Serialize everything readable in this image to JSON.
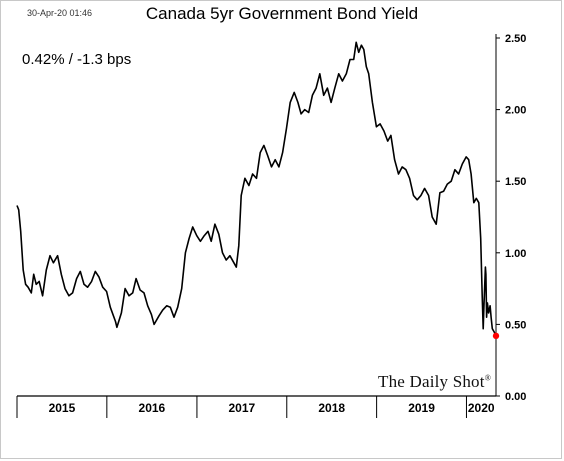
{
  "header": {
    "timestamp": "30-Apr-20 01:46",
    "title": "Canada 5yr Government Bond Yield",
    "readout": "0.42%  /  -1.3 bps"
  },
  "brand": {
    "name": "The Daily Shot",
    "mark": "®"
  },
  "colors": {
    "line": "#000000",
    "last_point": "#ff0000",
    "axis": "#000000"
  },
  "chart_data": {
    "type": "line",
    "title": "Canada 5yr Government Bond Yield",
    "xlabel": "",
    "ylabel": "",
    "ylim": [
      0,
      2.5
    ],
    "y_ticks": [
      "0.00",
      "0.50",
      "1.00",
      "1.50",
      "2.00",
      "2.50"
    ],
    "x_tick_labels": [
      "2015",
      "2016",
      "2017",
      "2018",
      "2019",
      "2020"
    ],
    "x_range": [
      "2015-01-01",
      "2020-04-30"
    ],
    "y_axis_position": "right",
    "grid": false,
    "series": [
      {
        "values": [
          [
            "2015-01-01",
            1.33
          ],
          [
            "2015-01-08",
            1.3
          ],
          [
            "2015-01-16",
            1.15
          ],
          [
            "2015-01-26",
            0.88
          ],
          [
            "2015-02-05",
            0.78
          ],
          [
            "2015-02-15",
            0.76
          ],
          [
            "2015-02-28",
            0.72
          ],
          [
            "2015-03-10",
            0.85
          ],
          [
            "2015-03-20",
            0.78
          ],
          [
            "2015-04-01",
            0.8
          ],
          [
            "2015-04-15",
            0.7
          ],
          [
            "2015-04-30",
            0.88
          ],
          [
            "2015-05-15",
            0.98
          ],
          [
            "2015-05-29",
            0.93
          ],
          [
            "2015-06-15",
            0.98
          ],
          [
            "2015-06-30",
            0.85
          ],
          [
            "2015-07-15",
            0.75
          ],
          [
            "2015-07-31",
            0.7
          ],
          [
            "2015-08-15",
            0.72
          ],
          [
            "2015-08-31",
            0.82
          ],
          [
            "2015-09-15",
            0.87
          ],
          [
            "2015-09-30",
            0.78
          ],
          [
            "2015-10-15",
            0.76
          ],
          [
            "2015-10-31",
            0.8
          ],
          [
            "2015-11-15",
            0.87
          ],
          [
            "2015-11-30",
            0.83
          ],
          [
            "2015-12-15",
            0.76
          ],
          [
            "2015-12-31",
            0.73
          ],
          [
            "2016-01-15",
            0.62
          ],
          [
            "2016-02-05",
            0.52
          ],
          [
            "2016-02-11",
            0.48
          ],
          [
            "2016-02-29",
            0.58
          ],
          [
            "2016-03-15",
            0.75
          ],
          [
            "2016-03-31",
            0.7
          ],
          [
            "2016-04-15",
            0.72
          ],
          [
            "2016-04-29",
            0.82
          ],
          [
            "2016-05-15",
            0.74
          ],
          [
            "2016-05-31",
            0.72
          ],
          [
            "2016-06-15",
            0.63
          ],
          [
            "2016-06-30",
            0.57
          ],
          [
            "2016-07-11",
            0.5
          ],
          [
            "2016-07-31",
            0.56
          ],
          [
            "2016-08-15",
            0.6
          ],
          [
            "2016-08-31",
            0.63
          ],
          [
            "2016-09-15",
            0.62
          ],
          [
            "2016-09-30",
            0.55
          ],
          [
            "2016-10-15",
            0.62
          ],
          [
            "2016-10-31",
            0.75
          ],
          [
            "2016-11-15",
            1.0
          ],
          [
            "2016-11-30",
            1.1
          ],
          [
            "2016-12-15",
            1.18
          ],
          [
            "2016-12-31",
            1.12
          ],
          [
            "2017-01-15",
            1.08
          ],
          [
            "2017-01-31",
            1.12
          ],
          [
            "2017-02-15",
            1.15
          ],
          [
            "2017-02-28",
            1.08
          ],
          [
            "2017-03-15",
            1.2
          ],
          [
            "2017-03-31",
            1.13
          ],
          [
            "2017-04-15",
            1.0
          ],
          [
            "2017-04-30",
            0.95
          ],
          [
            "2017-05-15",
            0.98
          ],
          [
            "2017-05-31",
            0.93
          ],
          [
            "2017-06-10",
            0.9
          ],
          [
            "2017-06-20",
            1.05
          ],
          [
            "2017-06-30",
            1.4
          ],
          [
            "2017-07-15",
            1.52
          ],
          [
            "2017-07-31",
            1.47
          ],
          [
            "2017-08-15",
            1.55
          ],
          [
            "2017-08-31",
            1.52
          ],
          [
            "2017-09-15",
            1.7
          ],
          [
            "2017-09-30",
            1.75
          ],
          [
            "2017-10-15",
            1.68
          ],
          [
            "2017-10-31",
            1.6
          ],
          [
            "2017-11-15",
            1.65
          ],
          [
            "2017-11-30",
            1.6
          ],
          [
            "2017-12-15",
            1.7
          ],
          [
            "2017-12-31",
            1.87
          ],
          [
            "2018-01-15",
            2.05
          ],
          [
            "2018-01-31",
            2.12
          ],
          [
            "2018-02-15",
            2.05
          ],
          [
            "2018-02-28",
            1.97
          ],
          [
            "2018-03-15",
            2.0
          ],
          [
            "2018-03-31",
            1.98
          ],
          [
            "2018-04-15",
            2.1
          ],
          [
            "2018-04-30",
            2.15
          ],
          [
            "2018-05-15",
            2.25
          ],
          [
            "2018-05-31",
            2.1
          ],
          [
            "2018-06-15",
            2.15
          ],
          [
            "2018-06-30",
            2.05
          ],
          [
            "2018-07-15",
            2.15
          ],
          [
            "2018-07-31",
            2.25
          ],
          [
            "2018-08-15",
            2.2
          ],
          [
            "2018-08-31",
            2.25
          ],
          [
            "2018-09-15",
            2.35
          ],
          [
            "2018-09-30",
            2.35
          ],
          [
            "2018-10-10",
            2.47
          ],
          [
            "2018-10-20",
            2.4
          ],
          [
            "2018-10-31",
            2.45
          ],
          [
            "2018-11-10",
            2.42
          ],
          [
            "2018-11-20",
            2.3
          ],
          [
            "2018-11-30",
            2.25
          ],
          [
            "2018-12-15",
            2.05
          ],
          [
            "2018-12-31",
            1.88
          ],
          [
            "2019-01-15",
            1.9
          ],
          [
            "2019-01-31",
            1.85
          ],
          [
            "2019-02-15",
            1.78
          ],
          [
            "2019-02-28",
            1.82
          ],
          [
            "2019-03-15",
            1.65
          ],
          [
            "2019-03-31",
            1.55
          ],
          [
            "2019-04-15",
            1.6
          ],
          [
            "2019-04-30",
            1.58
          ],
          [
            "2019-05-15",
            1.52
          ],
          [
            "2019-05-31",
            1.4
          ],
          [
            "2019-06-15",
            1.37
          ],
          [
            "2019-06-30",
            1.4
          ],
          [
            "2019-07-15",
            1.45
          ],
          [
            "2019-07-31",
            1.4
          ],
          [
            "2019-08-15",
            1.25
          ],
          [
            "2019-08-31",
            1.2
          ],
          [
            "2019-09-15",
            1.42
          ],
          [
            "2019-09-30",
            1.43
          ],
          [
            "2019-10-15",
            1.48
          ],
          [
            "2019-10-31",
            1.5
          ],
          [
            "2019-11-15",
            1.58
          ],
          [
            "2019-11-30",
            1.55
          ],
          [
            "2019-12-15",
            1.62
          ],
          [
            "2019-12-31",
            1.67
          ],
          [
            "2020-01-10",
            1.65
          ],
          [
            "2020-01-20",
            1.55
          ],
          [
            "2020-01-31",
            1.35
          ],
          [
            "2020-02-10",
            1.38
          ],
          [
            "2020-02-20",
            1.35
          ],
          [
            "2020-02-28",
            1.1
          ],
          [
            "2020-03-05",
            0.7
          ],
          [
            "2020-03-09",
            0.47
          ],
          [
            "2020-03-12",
            0.62
          ],
          [
            "2020-03-18",
            0.9
          ],
          [
            "2020-03-20",
            0.85
          ],
          [
            "2020-03-23",
            0.55
          ],
          [
            "2020-03-26",
            0.65
          ],
          [
            "2020-03-31",
            0.58
          ],
          [
            "2020-04-06",
            0.63
          ],
          [
            "2020-04-10",
            0.55
          ],
          [
            "2020-04-15",
            0.47
          ],
          [
            "2020-04-22",
            0.45
          ],
          [
            "2020-04-30",
            0.42
          ]
        ]
      }
    ],
    "last_point": {
      "x": "2020-04-30",
      "y": 0.42
    }
  }
}
